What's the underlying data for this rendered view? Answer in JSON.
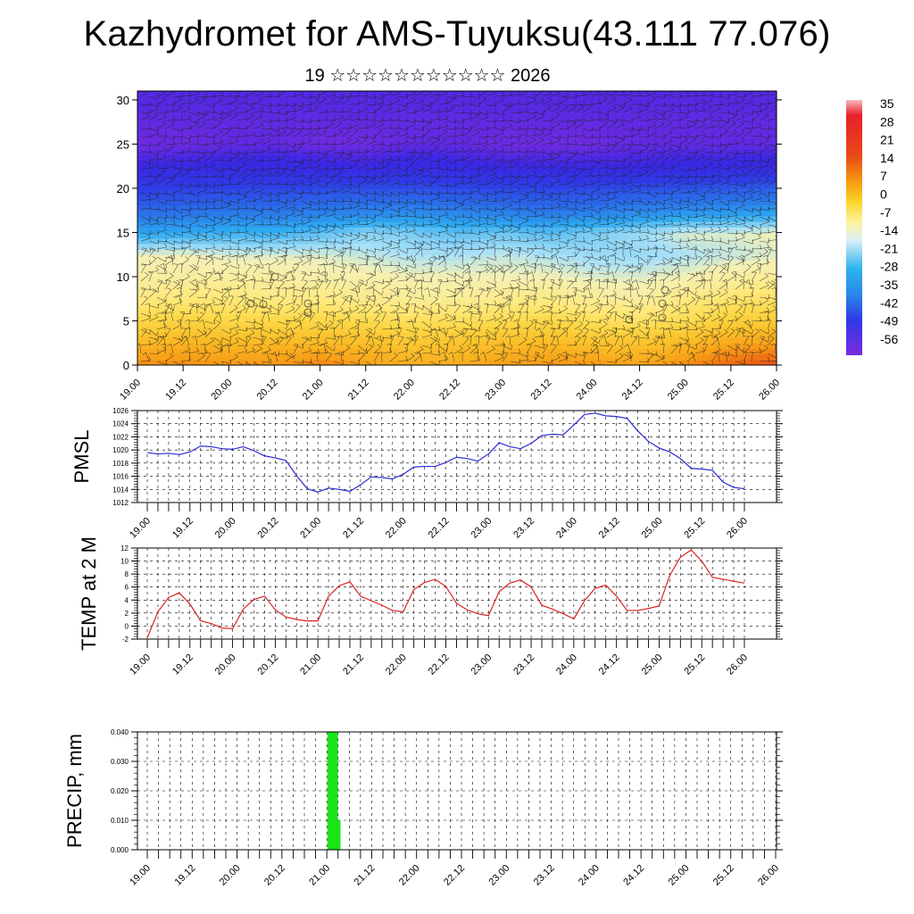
{
  "title": "Kazhydromet for AMS-Tuyuksu(43.111 77.076)",
  "subtitle": "19 ☆☆☆☆☆☆☆☆☆☆☆ 2026",
  "colors": {
    "pmsl_line": "#2a2ad8",
    "temp_line": "#dd2222",
    "precip_bar": "#18e418",
    "axis": "#000000"
  },
  "time_ticks": [
    "19.00",
    "19.12",
    "20.00",
    "20.12",
    "21.00",
    "21.12",
    "22.00",
    "22.12",
    "23.00",
    "23.12",
    "24.00",
    "24.12",
    "25.00",
    "25.12",
    "26.00"
  ],
  "chart_data": [
    {
      "type": "heatmap",
      "name": "vertical-section",
      "x_ticks": [
        "19.00",
        "19.12",
        "20.00",
        "20.12",
        "21.00",
        "21.12",
        "22.00",
        "22.12",
        "23.00",
        "23.12",
        "24.00",
        "24.12",
        "25.00",
        "25.12",
        "26.00"
      ],
      "y_ticks": [
        "0",
        "5",
        "10",
        "15",
        "20",
        "25",
        "30"
      ],
      "ylim": [
        0,
        31
      ],
      "levels": [
        0,
        2.5,
        5,
        7.5,
        10,
        12.5,
        15,
        17.5,
        20,
        22.5,
        25,
        27.5,
        30
      ],
      "note": "temperature (°C) field, rows from lowest level upward, 15 columns at 12h steps",
      "values": [
        [
          10,
          10,
          9,
          9,
          11,
          8,
          6,
          6,
          8,
          9,
          9,
          7,
          10,
          14,
          16
        ],
        [
          4,
          5,
          4,
          4,
          4,
          3,
          1,
          2,
          3,
          4,
          2,
          2,
          4,
          7,
          8
        ],
        [
          -3,
          -2,
          -3,
          -3,
          -3,
          -4,
          -5,
          -5,
          -4,
          -3,
          -5,
          -6,
          -4,
          -1,
          0
        ],
        [
          -9,
          -8,
          -8,
          -9,
          -9,
          -10,
          -11,
          -11,
          -10,
          -9,
          -11,
          -12,
          -9,
          -7,
          -6
        ],
        [
          -12,
          -12,
          -12,
          -12,
          -13,
          -13,
          -14,
          -14,
          -14,
          -14,
          -15,
          -15,
          -14,
          -12,
          -11
        ],
        [
          -14,
          -14,
          -15,
          -15,
          -15,
          -16,
          -17,
          -17,
          -16,
          -17,
          -18,
          -18,
          -17,
          -16,
          -15
        ],
        [
          -26,
          -25,
          -24,
          -24,
          -22,
          -19,
          -20,
          -22,
          -21,
          -22,
          -20,
          -18,
          -15,
          -15,
          -14
        ],
        [
          -36,
          -35,
          -34,
          -34,
          -33,
          -32,
          -31,
          -32,
          -33,
          -34,
          -33,
          -31,
          -30,
          -29,
          -28
        ],
        [
          -45,
          -44,
          -43,
          -43,
          -42,
          -41,
          -41,
          -42,
          -43,
          -43,
          -42,
          -41,
          -40,
          -39,
          -38
        ],
        [
          -55,
          -54,
          -54,
          -53,
          -54,
          -55,
          -53,
          -54,
          -55,
          -55,
          -55,
          -55,
          -54,
          -54,
          -53
        ],
        [
          -59,
          -59,
          -58,
          -58,
          -59,
          -59,
          -58,
          -58,
          -59,
          -59,
          -59,
          -58,
          -58,
          -58,
          -58
        ],
        [
          -58,
          -58,
          -58,
          -58,
          -58,
          -58,
          -58,
          -58,
          -58,
          -58,
          -58,
          -58,
          -58,
          -58,
          -58
        ],
        [
          -57,
          -57,
          -57,
          -57,
          -57,
          -57,
          -57,
          -57,
          -57,
          -57,
          -57,
          -57,
          -57,
          -57,
          -57
        ]
      ]
    },
    {
      "type": "line",
      "name": "pmsl",
      "ylabel": "PMSL",
      "y_ticks": [
        "1012",
        "1014",
        "1016",
        "1018",
        "1020",
        "1022",
        "1024",
        "1026"
      ],
      "ylim": [
        1012,
        1026
      ],
      "x_ticks": [
        "19.00",
        "19.12",
        "20.00",
        "20.12",
        "21.00",
        "21.12",
        "22.00",
        "22.12",
        "23.00",
        "23.12",
        "24.00",
        "24.12",
        "25.00",
        "25.12",
        "26.00"
      ],
      "step_hours": 6,
      "values": [
        1019.6,
        1019.4,
        1019.5,
        1019.3,
        1019.7,
        1020.6,
        1020.5,
        1020.2,
        1020.1,
        1020.5,
        1019.9,
        1019.1,
        1018.8,
        1018.4,
        1016.1,
        1014.1,
        1013.6,
        1014.2,
        1014.0,
        1013.7,
        1014.7,
        1015.9,
        1015.8,
        1015.6,
        1016.3,
        1017.4,
        1017.5,
        1017.5,
        1018.1,
        1018.9,
        1018.7,
        1018.3,
        1019.4,
        1021.1,
        1020.5,
        1020.2,
        1021.0,
        1022.2,
        1022.4,
        1022.3,
        1023.8,
        1025.4,
        1025.6,
        1025.2,
        1025.1,
        1024.8,
        1022.9,
        1021.3,
        1020.3,
        1019.7,
        1018.7,
        1017.2,
        1017.1,
        1016.9,
        1015.1,
        1014.3,
        1014.1
      ]
    },
    {
      "type": "line",
      "name": "temp-2m",
      "ylabel": "TEMP at 2 M",
      "y_ticks": [
        "-2",
        "0",
        "2",
        "4",
        "6",
        "8",
        "10",
        "12"
      ],
      "ylim": [
        -2,
        12
      ],
      "x_ticks": [
        "19.00",
        "19.12",
        "20.00",
        "20.12",
        "21.00",
        "21.12",
        "22.00",
        "22.12",
        "23.00",
        "23.12",
        "24.00",
        "24.12",
        "25.00",
        "25.12",
        "26.00"
      ],
      "step_hours": 6,
      "values": [
        -1.8,
        2.2,
        4.4,
        5.1,
        3.4,
        0.8,
        0.4,
        -0.3,
        -0.4,
        2.6,
        4.1,
        4.6,
        2.5,
        1.4,
        1.0,
        0.8,
        0.8,
        4.6,
        6.2,
        6.8,
        4.6,
        3.9,
        3.2,
        2.4,
        2.2,
        5.6,
        6.7,
        7.2,
        6.1,
        3.5,
        2.5,
        1.9,
        1.6,
        5.3,
        6.6,
        7.1,
        6.0,
        3.2,
        2.6,
        1.9,
        1.1,
        3.9,
        5.8,
        6.3,
        4.6,
        2.4,
        2.4,
        2.7,
        3.1,
        7.8,
        10.6,
        11.7,
        10.0,
        7.5,
        7.2,
        6.9,
        6.6
      ]
    },
    {
      "type": "bar",
      "name": "precip",
      "ylabel": "PRECIP, mm",
      "y_ticks": [
        "0.000",
        "0.010",
        "0.020",
        "0.030",
        "0.040"
      ],
      "ylim": [
        0,
        0.04
      ],
      "x_ticks": [
        "19.00",
        "19.12",
        "20.00",
        "20.12",
        "21.00",
        "21.12",
        "22.00",
        "22.12",
        "23.00",
        "23.12",
        "24.00",
        "24.12",
        "25.00",
        "25.12",
        "26.00"
      ],
      "step_hours": 3,
      "values": [
        0,
        0,
        0,
        0,
        0,
        0,
        0,
        0,
        0,
        0,
        0,
        0,
        0,
        0,
        0,
        0,
        0,
        0,
        0,
        0,
        0,
        0,
        0,
        0,
        0,
        0,
        0,
        0,
        0,
        0,
        0,
        0,
        0,
        0,
        0,
        0,
        0,
        0,
        0,
        0,
        0,
        0,
        0,
        0,
        0,
        0,
        0,
        0,
        0,
        0,
        0,
        0,
        0,
        0,
        0,
        0,
        0,
        0,
        0,
        0,
        0,
        0,
        0,
        0,
        0,
        0,
        0,
        0,
        0,
        0.04,
        0.01,
        0,
        0,
        0,
        0,
        0,
        0,
        0,
        0,
        0,
        0,
        0,
        0,
        0,
        0,
        0,
        0,
        0,
        0,
        0,
        0,
        0,
        0,
        0,
        0,
        0,
        0,
        0,
        0,
        0,
        0,
        0,
        0,
        0,
        0,
        0,
        0,
        0,
        0,
        0,
        0,
        0,
        0,
        0,
        0,
        0,
        0,
        0,
        0,
        0,
        0,
        0,
        0,
        0,
        0,
        0,
        0,
        0,
        0,
        0,
        0,
        0,
        0,
        0,
        0,
        0,
        0,
        0,
        0,
        0,
        0,
        0,
        0,
        0,
        0,
        0,
        0,
        0,
        0,
        0,
        0,
        0,
        0,
        0,
        0,
        0,
        0,
        0,
        0,
        0,
        0,
        0,
        0,
        0,
        0,
        0,
        0,
        0,
        0,
        0,
        0,
        0,
        0,
        0,
        0,
        0,
        0,
        0,
        0,
        0,
        0,
        0,
        0,
        0,
        0,
        0,
        0,
        0,
        0,
        0,
        0,
        0,
        0,
        0,
        0,
        0,
        0,
        0,
        0,
        0,
        0,
        0,
        0,
        0,
        0,
        0,
        0,
        0,
        0,
        0,
        0,
        0,
        0,
        0,
        0,
        0,
        0,
        0,
        0,
        0,
        0,
        0,
        0,
        0,
        0,
        0,
        0,
        0,
        0,
        0,
        0,
        0,
        0,
        0,
        0,
        0,
        0,
        0,
        0
      ]
    }
  ],
  "colorbar": {
    "labels": [
      "35",
      "28",
      "21",
      "14",
      "7",
      "0",
      "-7",
      "-14",
      "-21",
      "-28",
      "-35",
      "-42",
      "-49",
      "-56"
    ]
  }
}
